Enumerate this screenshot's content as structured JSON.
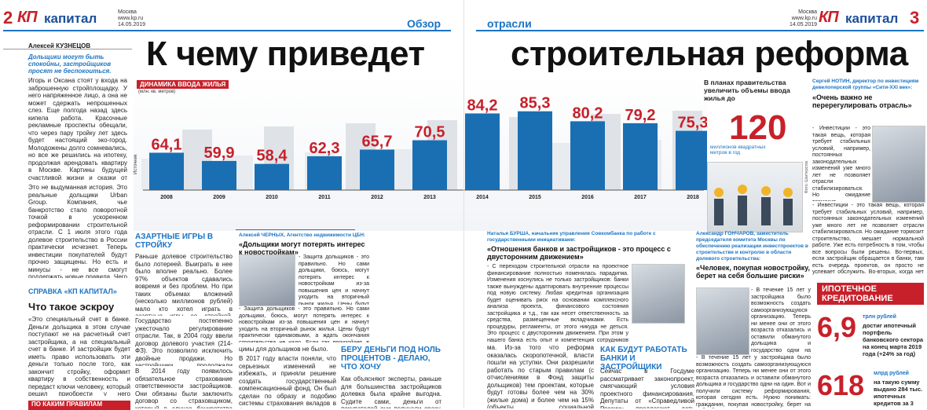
{
  "header_left": {
    "page": "2",
    "logo": "КП",
    "logo_suffix": "капитал",
    "city": "Москва",
    "site": "www.kp.ru",
    "date": "14.05.2019",
    "section": "Обзор"
  },
  "header_right": {
    "page": "3",
    "logo": "КП",
    "logo_suffix": "капитал",
    "city": "Москва",
    "site": "www.kp.ru",
    "date": "14.05.2019",
    "section": "отрасли"
  },
  "headline": {
    "left": "К чему приведет",
    "right": "строительная реформа"
  },
  "author": "Алексей КУЗНЕЦОВ",
  "lead": "Дольщики могут быть спокойны, застройщиков просят не беспокоиться.",
  "col1_text": "Игорь и Оксана стоят у входа на заброшенную стройплощадку. У него напряженное лицо, а она не может сдержать непрошенных слез. Еще полгода назад здесь кипела работа. Красочные рекламные проспекты обещали, что через пару тройку лет здесь будет настоящий эко-город. Молодожены долго сомневались, но все же решились на ипотеку, продолжая арендовать квартиру в Москве. Картины будущей счастливой жизни и сказки от застройщика сыграли свое дело. Теперь о мечте можно забыть минимум на пять лет. А может, и больше. И все это время придется оплачивать и ипотеку, и съем чужого жилья.",
  "col1_text2": "Это не выдуманная история. Это реальные дольщики Urban Group. Компания, чье банкротство стало поворотной точкой в ускоренном реформировании строительной отрасли. С 1 июля этого года долевое строительство в России практически исчезнет. Теперь инвестиции покупателей будут прочно защищены. Но есть и минусы - не все смогут поддержать новые правила. Чего ждать покупателям новостроек? Найдут ли частники, девелоперы и банки компромисс? И самое главное - вырастут ли цены?",
  "chart_data": {
    "type": "bar",
    "title": "ДИНАМИКА ВВОДА ЖИЛЬЯ",
    "subtitle": "(млн. кв. метров)",
    "categories": [
      "2008",
      "2009",
      "2010",
      "2011",
      "2012",
      "2013",
      "2014",
      "2015",
      "2016",
      "2017",
      "2018"
    ],
    "values": [
      64.1,
      59.9,
      58.4,
      62.3,
      65.7,
      70.5,
      84.2,
      85.3,
      80.2,
      79.2,
      75.3
    ],
    "labels": [
      "64,1",
      "59,9",
      "58,4",
      "62,3",
      "65,7",
      "70,5",
      "84,2",
      "85,3",
      "80,2",
      "79,2",
      "75,3"
    ],
    "source": "Источник",
    "bar_color": "#1a6fb3",
    "value_color": "#c8202a"
  },
  "plan": {
    "text": "В планах правительства увеличить объемы ввода жилья до",
    "value": "120",
    "unit": "миллионов квадратных метров в год"
  },
  "photo_credit": "Фото: Шаттерсток",
  "sidebar1": {
    "title": "СПРАВКА «КП КАПИТАЛ»",
    "heading": "Что такое эскроу",
    "text": "«Это специальный счет в банке. Деньги дольщика в этом случае поступают не на расчетный счет застройщика, а на специальный счет в банке. И застройщик будет иметь право использовать эти деньги только после того, как закончит стройку, оформит квартиру в собственность и передаст ключи человеку, который решил приобрести у него квартиру. Это уже отечественная гарантия для покупателя. В этот период финансировать проект застройщик может с помощью кредитов от банков. Это называется проектным финансированием»."
  },
  "sidebar1_next": "ПО КАКИМ ПРАВИЛАМ",
  "gambling": {
    "heading": "АЗАРТНЫЕ ИГРЫ В СТРОЙКУ",
    "text": "Раньше долевое строительство было лотереей. Выиграть в нее было вполне реально. Более 97% объектов сдавались вовремя и без проблем. Но при таких объемах вложений (несколько миллионов рублей) мало кто хотел играть в азартные игры со стройкой. Количество обманутых дольщиков составляло десятки тысяч человек во всех странах.",
    "text2": "Государство постепенно ужесточало регулирование отрасли. Так, в 2004 году ввели договор долевого участия (214-ФЗ). Это позволило исключить двойные продажи. Но застройщики продолжали банкротиться. Кто-то по естественным причинам, а кто-то - по мошенническим.",
    "text3": "В 2014 году появилось обязательное страхование ответственности застройщиков. Они обязаны были заключить договор со страховщиком, который в случае банкротства девелопера выплачивал бы компенсацию дольщикам. Но вся схема сводилась к подмене..."
  },
  "quote1": {
    "name": "Алексей ЧЕРНЫХ, Агентство недвижимости ЦБН:",
    "heading": "«Дольщики могут потерять интерес к новостройкам»",
    "text": "- Защита дольщиков - это правильно. Но сами дольщики, боюсь, могут потерять интерес к новостройкам из-за повышения цен и начнут уходить на вторичный рынок жилья. Цены будут практически одинаковыми, а ждать окончания строительства не надо. Если так произойдет, в ближайший год у некоторых застройщиков, перешедших на эскроу-счета, начнет падать спрос. Возможно, это может привести к приостановке строительных проектов и в последствии к традиции у ряда компаний.",
    "credit": "Фото: ЦБН"
  },
  "quote2": {
    "name": "Наталья БУРША, начальник управления Совкомбанка по работе с государственными инициативами:",
    "heading": "«Отношения банков и застройщиков - это процесс с двусторонним движением»",
    "text": "- С переходом строительной отрасли на проектное финансирование полностью поменялась парадигма. Изменения коснулись не только застройщиков: банки также вынуждены адаптировать внутренние процессы под новую систему. Любая кредитная организация будет оценивать риск на основании комплексного анализа проекта, финансового состояния застройщика и т.д., так как несет ответственность за средства, размещенные вкладчиками. Есть процедуры, регламенты, от этого никуда не деться. Это процесс с двусторонним движением. При этом у нашего банка есть опыт и компетенция сотрудников Совкомбанка позволяет реализовывать проектное финансирование в рамках 214-ФЗ.",
    "credit": "Фото: Совкомбанк"
  },
  "quote3": {
    "name": "Александр ГОНЧАРОВ, заместитель председателя комитета Москвы по обеспечению реализации инвестпроектов в строительстве и контролю в области долевого строительства:",
    "heading": "«Человек, покупая новостройку, берет на себя большие риски»",
    "text": "- В течение 15 лет у застройщика было возможность создать самоорганизующуюся организацию. Теперь ни менее они от этого возраста отказались и оставили обманутого дольщика и государство одни на один. Вот и получили систему реформирования, которая сегодня есть. Нужно понимать: гражданин, покупая новостройку, берет на себя большие риски. Ведь очень часто в случае он приобретает старую квартиру. И тем, кто сегодня не доверяет может выбрать вторичное жилье..."
  },
  "quote4": {
    "name": "Сергей НОТИН, директор по инвестициям девелоперской группы «Сити-XXI век»:",
    "heading": "«Очень важно не перерегулировать отрасль»",
    "text": "- Инвестиции - это такая вещь, которая требует стабильных условий, например, постоянных законодательных изменений уже много лет не позволяет отрасли стабилизироваться. Но ожидание тормозит строительство, мешает нормальной работе. Уже есть потребность в том, чтобы все вопросы были решены. Во-первых, если застройщик обращается в банки, там есть очередь проектов, он просто не успевает обслужить. Во-вторых, когда нет маржинальности проектов, то компания останавливает финансирование. До тех пор, пока застройщик не может подать заявку, а если ставка отклонится, она может уйти в проект. Мы очень важно не перерегулировать отрасль. Я уверен, что все в итоге..."
  },
  "col_money": {
    "text": "цииы для дольщиков не было.",
    "text2": "В 2017 году власти поняли, что серьезных изменений не избежать, и приняли решение создать государственный компенсационный фонд. Он был сделан по образу и подобию системы страхования вкладов в банках. Застройщики стали отчислять в фонд 1,2% от суммы заключенного договора. А случае проблем государство либо достраивало бы объект, либо выплачивало бы компенсации дольщикам. Но такая схема не сработала. Уже в декабре 2017 го президент Владимир..."
  },
  "money": {
    "heading": "БЕРУ ДЕНЬГИ ПОД НОЛЬ ПРОЦЕНТОВ - ДЕЛАЮ, ЧТО ХОЧУ",
    "text": "Как объясняют эксперты, раньше для большинства застройщиков долевка была крайне выгодна. Судите сами, деньги от покупателей они получали сразу, а объект сдавали лишь через пару-тройку лет. По сути, граждане беспроцентно кредитовали строительные компании. При этом тратить их застройщик мог на что угодно..."
  },
  "col_money2": {
    "text": "ма. Из-за того что реформа оказалась скоропотечной, власти пошли на уступки. Они разрешили работать по старым правилам (с отчислениями в Фонд защиты дольщиков) тем проектам, которые будут готовы более чем на 30% (жилые дома) и более чем на 15% (объекты социальной инфраструктуры - школы, больницы, детсады)."
  },
  "banks": {
    "heading": "КАК БУДУТ РАБОТАТЬ БАНКИ И ЗАСТРОЙЩИКИ",
    "text": "Сейчас в Госдуме рассматривает законопроект, смягчающий условия проектного финансирования. Депутаты от «Справедливой России» предлагают дать застройщикам право получать часть денег в процессе строительства. К примеру, подтверждена готовность дома на 25% - получили 25% от внесенных покупателями денег. Застройщики эту инициативу поддерживают..."
  },
  "mortgage": {
    "title": "ИПОТЕЧНОЕ КРЕДИТОВАНИЕ",
    "v1": "6,9",
    "v1_unit": "трлн рублей",
    "v1_text": "достиг ипотечный портфель банковского сектора на конец марта 2019 года (+24% за год)",
    "v2": "618",
    "v2_unit": "млрд рублей",
    "v2_text": "на такую сумму выдано 284 тыс. ипотечных кредитов за 3 месяца 2019 года"
  }
}
